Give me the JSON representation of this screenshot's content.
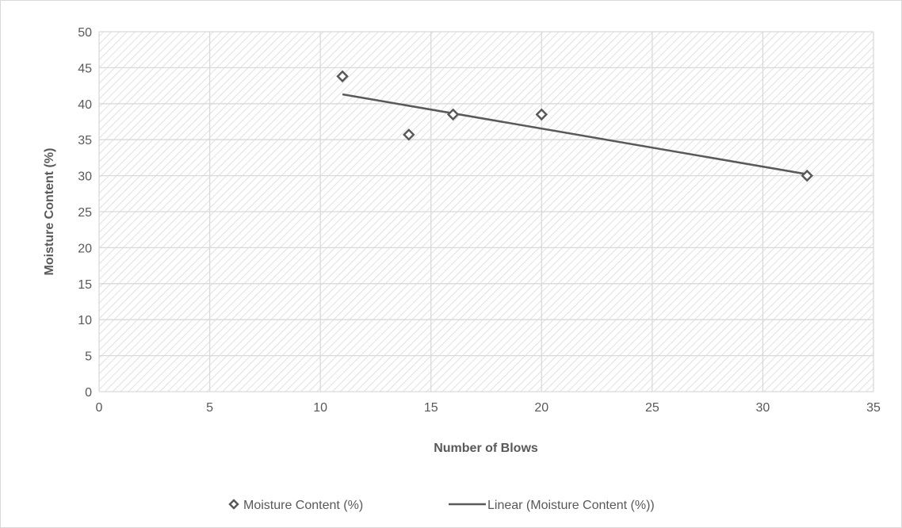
{
  "chart_data": {
    "type": "scatter",
    "xlabel": "Number of Blows",
    "ylabel": "Moisture Content (%)",
    "xlim": [
      0,
      35
    ],
    "ylim": [
      0,
      50
    ],
    "xticks": [
      0,
      5,
      10,
      15,
      20,
      25,
      30,
      35
    ],
    "yticks": [
      0,
      5,
      10,
      15,
      20,
      25,
      30,
      35,
      40,
      45,
      50
    ],
    "grid": true,
    "legend_position": "bottom",
    "series": [
      {
        "name": "Moisture Content (%)",
        "marker": "diamond",
        "x": [
          11,
          14,
          16,
          20,
          32
        ],
        "y": [
          43.8,
          35.7,
          38.5,
          38.5,
          30.0
        ]
      }
    ],
    "trendline": {
      "name": "Linear (Moisture Content (%))",
      "x": [
        11,
        32
      ],
      "y": [
        41.3,
        30.2
      ]
    },
    "colors": {
      "series": "#595959",
      "grid": "#d9d9d9",
      "hatch": "#d9d9d9"
    }
  }
}
